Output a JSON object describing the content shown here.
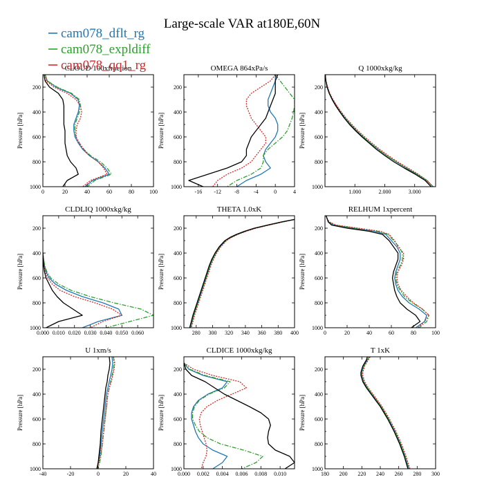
{
  "figure": {
    "title": "Large-scale VAR at180E,60N",
    "legend": [
      {
        "name": "cam078_dflt_rg",
        "color": "#1f77b4",
        "dash": "solid"
      },
      {
        "name": "cam078_expldiff",
        "color": "#2ca02c",
        "dash": "dashdot"
      },
      {
        "name": "cam078_qq1_rg",
        "color": "#d62728",
        "dash": "dotted"
      },
      {
        "name": "",
        "color": "#000000",
        "dash": "solid"
      }
    ],
    "ylabel": "Pressure [hPa]"
  },
  "chart_data": [
    {
      "type": "line",
      "title": "CLOUD  100xfraction",
      "ylabel": "Pressure [hPa]",
      "xlim": [
        0,
        100
      ],
      "ylim": [
        1000,
        100
      ],
      "xticks": [
        "0",
        "20",
        "40",
        "60",
        "80",
        "100"
      ],
      "yticks": [
        "200",
        "400",
        "600",
        "800",
        "1000"
      ],
      "y": [
        100,
        150,
        200,
        250,
        300,
        350,
        400,
        450,
        500,
        550,
        600,
        650,
        700,
        750,
        800,
        850,
        900,
        950,
        1000
      ],
      "series": [
        {
          "x": [
            2,
            4,
            12,
            25,
            32,
            33,
            32,
            30,
            28,
            28,
            29,
            32,
            36,
            42,
            50,
            56,
            60,
            45,
            38
          ]
        },
        {
          "x": [
            2,
            4,
            13,
            26,
            33,
            34,
            33,
            31,
            29,
            29,
            30,
            33,
            37,
            43,
            52,
            58,
            62,
            47,
            40
          ]
        },
        {
          "x": [
            2,
            3,
            10,
            22,
            30,
            34,
            35,
            34,
            31,
            30,
            30,
            33,
            37,
            42,
            50,
            55,
            58,
            43,
            36
          ]
        },
        {
          "x": [
            1,
            2,
            6,
            14,
            18,
            19,
            19,
            19,
            19,
            20,
            20,
            20,
            21,
            22,
            25,
            30,
            32,
            22,
            18
          ]
        }
      ]
    },
    {
      "type": "line",
      "title": "OMEGA  864xPa/s",
      "ylabel": "Pressure [hPa]",
      "xlim": [
        -19,
        4
      ],
      "ylim": [
        1000,
        100
      ],
      "xticks": [
        "-16",
        "-12",
        "-8",
        "-4",
        "0",
        "4"
      ],
      "yticks": [
        "200",
        "400",
        "600",
        "800",
        "1000"
      ],
      "y": [
        100,
        150,
        200,
        250,
        300,
        350,
        400,
        450,
        500,
        550,
        600,
        650,
        700,
        750,
        800,
        850,
        900,
        950,
        1000
      ],
      "series": [
        {
          "x": [
            0,
            0,
            -0.5,
            -1,
            -1.5,
            -1.5,
            -1,
            0,
            0.5,
            0.5,
            0,
            -1,
            -2,
            -2.5,
            -2,
            -1,
            -3,
            -6,
            -8
          ]
        },
        {
          "x": [
            0,
            1,
            2,
            3,
            4,
            4,
            3.8,
            3.5,
            3,
            2.5,
            1.5,
            0,
            -1.5,
            -2.5,
            -2.5,
            -3,
            -5,
            -8,
            -10
          ]
        },
        {
          "x": [
            0,
            -1,
            -3,
            -5,
            -6,
            -6,
            -5.5,
            -5,
            -4,
            -3,
            -2,
            -2,
            -3,
            -4,
            -5,
            -7,
            -10,
            -12,
            -13
          ]
        },
        {
          "x": [
            0.5,
            0,
            0,
            0,
            -0.5,
            -1,
            -1.5,
            -2,
            -3,
            -4,
            -5,
            -5.5,
            -6,
            -6,
            -7,
            -10,
            -14,
            -18,
            -15
          ]
        }
      ]
    },
    {
      "type": "line",
      "title": "Q  1000xkg/kg",
      "ylabel": "Pressure [hPa]",
      "xlim": [
        0,
        3.7
      ],
      "ylim": [
        1000,
        100
      ],
      "xticks": [
        "1.000",
        "2.000",
        "3.000"
      ],
      "yticks": [
        "200",
        "400",
        "600",
        "800",
        "1000"
      ],
      "y": [
        100,
        150,
        200,
        250,
        300,
        350,
        400,
        450,
        500,
        550,
        600,
        650,
        700,
        750,
        800,
        850,
        900,
        950,
        1000
      ],
      "series": [
        {
          "x": [
            0.01,
            0.03,
            0.08,
            0.15,
            0.25,
            0.38,
            0.52,
            0.68,
            0.86,
            1.06,
            1.28,
            1.52,
            1.78,
            2.06,
            2.38,
            2.72,
            3.08,
            3.4,
            3.62
          ]
        },
        {
          "x": [
            0.01,
            0.03,
            0.08,
            0.15,
            0.25,
            0.38,
            0.52,
            0.68,
            0.86,
            1.06,
            1.28,
            1.52,
            1.78,
            2.06,
            2.38,
            2.72,
            3.08,
            3.4,
            3.62
          ]
        },
        {
          "x": [
            0.01,
            0.03,
            0.09,
            0.16,
            0.27,
            0.4,
            0.55,
            0.71,
            0.9,
            1.1,
            1.33,
            1.57,
            1.83,
            2.12,
            2.43,
            2.78,
            3.12,
            3.42,
            3.6
          ]
        },
        {
          "x": [
            0.01,
            0.03,
            0.07,
            0.14,
            0.24,
            0.36,
            0.5,
            0.65,
            0.82,
            1.02,
            1.24,
            1.48,
            1.72,
            2.0,
            2.3,
            2.65,
            3.02,
            3.35,
            3.55
          ]
        }
      ]
    },
    {
      "type": "line",
      "title": "CLDLIQ  1000xkg/kg",
      "ylabel": "Pressure [hPa]",
      "xlim": [
        0,
        0.07
      ],
      "ylim": [
        1000,
        100
      ],
      "xticks": [
        "0.000",
        "0.010",
        "0.020",
        "0.030",
        "0.040",
        "0.050",
        "0.060"
      ],
      "yticks": [
        "200",
        "400",
        "600",
        "800",
        "1000"
      ],
      "y": [
        400,
        450,
        500,
        550,
        600,
        650,
        700,
        750,
        800,
        850,
        900,
        950,
        1000
      ],
      "series": [
        {
          "x": [
            0,
            0.0005,
            0.001,
            0.002,
            0.004,
            0.008,
            0.015,
            0.025,
            0.038,
            0.048,
            0.05,
            0.035,
            0.025
          ]
        },
        {
          "x": [
            0,
            0.0005,
            0.0012,
            0.0025,
            0.005,
            0.01,
            0.018,
            0.03,
            0.045,
            0.062,
            0.07,
            0.055,
            0.04
          ]
        },
        {
          "x": [
            0,
            0.0003,
            0.0008,
            0.0015,
            0.003,
            0.006,
            0.011,
            0.02,
            0.033,
            0.044,
            0.05,
            0.038,
            0.03
          ]
        },
        {
          "x": [
            0,
            0.0002,
            0.0005,
            0.001,
            0.002,
            0.004,
            0.006,
            0.009,
            0.013,
            0.019,
            0.025,
            0.01,
            0.002
          ]
        }
      ]
    },
    {
      "type": "line",
      "title": "THETA  1.0xK",
      "ylabel": "Pressure [hPa]",
      "xlim": [
        265,
        400
      ],
      "ylim": [
        1000,
        100
      ],
      "xticks": [
        "280",
        "300",
        "320",
        "340",
        "360",
        "380",
        "400"
      ],
      "yticks": [
        "200",
        "400",
        "600",
        "800",
        "1000"
      ],
      "y": [
        130,
        150,
        175,
        200,
        225,
        250,
        275,
        300,
        350,
        400,
        450,
        500,
        600,
        700,
        800,
        900,
        950,
        1000
      ],
      "series": [
        {
          "x": [
            400,
            385,
            368,
            352,
            340,
            330,
            322,
            316,
            309,
            304,
            300,
            297,
            292,
            287,
            282,
            277,
            275,
            273
          ]
        },
        {
          "x": [
            400,
            385,
            368,
            352,
            340,
            330,
            322,
            316,
            309,
            304,
            300,
            297,
            292,
            287,
            282,
            277,
            275,
            273
          ]
        },
        {
          "x": [
            400,
            386,
            369,
            353,
            341,
            331,
            323,
            317,
            310,
            305,
            301,
            298,
            293,
            288,
            283,
            278,
            276,
            274
          ]
        },
        {
          "x": [
            400,
            384,
            367,
            351,
            339,
            329,
            321,
            315,
            308,
            303,
            299,
            296,
            291,
            286,
            281,
            276,
            274,
            272
          ]
        }
      ]
    },
    {
      "type": "line",
      "title": "RELHUM  1xpercent",
      "ylabel": "Pressure [hPa]",
      "xlim": [
        0,
        100
      ],
      "ylim": [
        1000,
        100
      ],
      "xticks": [
        "0",
        "20",
        "40",
        "60",
        "80",
        "100"
      ],
      "yticks": [
        "200",
        "400",
        "600",
        "800",
        "1000"
      ],
      "y": [
        100,
        125,
        150,
        175,
        200,
        225,
        250,
        300,
        350,
        400,
        450,
        500,
        550,
        600,
        650,
        700,
        750,
        800,
        850,
        900,
        950,
        1000
      ],
      "series": [
        {
          "x": [
            1,
            2,
            3,
            8,
            25,
            45,
            55,
            60,
            65,
            68,
            68,
            66,
            64,
            63,
            64,
            66,
            70,
            76,
            85,
            92,
            90,
            82
          ]
        },
        {
          "x": [
            1,
            2,
            3,
            9,
            27,
            47,
            57,
            62,
            67,
            70,
            70,
            68,
            65,
            64,
            65,
            68,
            72,
            79,
            88,
            94,
            92,
            85
          ]
        },
        {
          "x": [
            1,
            2,
            4,
            10,
            30,
            50,
            58,
            63,
            66,
            71,
            71,
            69,
            66,
            65,
            66,
            69,
            74,
            80,
            88,
            94,
            90,
            84
          ]
        },
        {
          "x": [
            1,
            2,
            3,
            6,
            20,
            40,
            52,
            58,
            62,
            66,
            66,
            64,
            62,
            61,
            62,
            63,
            65,
            68,
            74,
            82,
            86,
            78
          ]
        }
      ]
    },
    {
      "type": "line",
      "title": "U  1xm/s",
      "ylabel": "Pressure [hPa]",
      "xlim": [
        -40,
        40
      ],
      "ylim": [
        1000,
        100
      ],
      "xticks": [
        "-40",
        "-20",
        "0",
        "20",
        "40"
      ],
      "yticks": [
        "200",
        "400",
        "600",
        "800",
        "1000"
      ],
      "y": [
        100,
        150,
        200,
        250,
        300,
        350,
        400,
        500,
        600,
        700,
        800,
        900,
        950,
        1000
      ],
      "series": [
        {
          "x": [
            10,
            10.5,
            10,
            9,
            8,
            7,
            6,
            5,
            4,
            3,
            2,
            1,
            0,
            -0.5
          ]
        },
        {
          "x": [
            11,
            11.5,
            11,
            10,
            9,
            8,
            7,
            6,
            5,
            4,
            3,
            2,
            1,
            0
          ]
        },
        {
          "x": [
            11,
            12,
            11.5,
            10.5,
            9.5,
            8,
            7,
            6,
            5,
            4,
            3,
            1.5,
            0.5,
            -1
          ]
        },
        {
          "x": [
            8,
            8.5,
            8,
            7,
            6.5,
            5.5,
            5,
            4,
            3,
            2,
            1.5,
            0.5,
            0,
            -1
          ]
        }
      ]
    },
    {
      "type": "line",
      "title": "CLDICE  1000xkg/kg",
      "ylabel": "Pressure [hPa]",
      "xlim": [
        0,
        0.0115
      ],
      "ylim": [
        1000,
        100
      ],
      "xticks": [
        "0.000",
        "0.002",
        "0.004",
        "0.006",
        "0.008",
        "0.010"
      ],
      "yticks": [
        "200",
        "400",
        "600",
        "800",
        "1000"
      ],
      "y": [
        150,
        200,
        250,
        300,
        350,
        400,
        450,
        500,
        550,
        600,
        650,
        700,
        750,
        800,
        850,
        900,
        950,
        1000
      ],
      "series": [
        {
          "x": [
            0,
            0.0005,
            0.002,
            0.0045,
            0.004,
            0.0025,
            0.0015,
            0.001,
            0.0008,
            0.0008,
            0.001,
            0.0012,
            0.0015,
            0.002,
            0.003,
            0.0045,
            0.004,
            0.003
          ]
        },
        {
          "x": [
            0,
            0.0006,
            0.0022,
            0.0048,
            0.0042,
            0.0026,
            0.0016,
            0.0011,
            0.0009,
            0.0009,
            0.0012,
            0.0016,
            0.0024,
            0.0038,
            0.0062,
            0.0082,
            0.0075,
            0.006
          ]
        },
        {
          "x": [
            0,
            0.001,
            0.003,
            0.0058,
            0.0065,
            0.005,
            0.0035,
            0.0024,
            0.0018,
            0.0016,
            0.0017,
            0.0019,
            0.0021,
            0.0023,
            0.0024,
            0.0023,
            0.002,
            0.0018
          ]
        },
        {
          "x": [
            0,
            0.0002,
            0.0008,
            0.0022,
            0.0032,
            0.0042,
            0.0055,
            0.0068,
            0.008,
            0.0088,
            0.009,
            0.0088,
            0.0087,
            0.0088,
            0.0095,
            0.011,
            0.0115,
            0.0105
          ]
        }
      ]
    },
    {
      "type": "line",
      "title": "T  1xK",
      "ylabel": "Pressure [hPa]",
      "xlim": [
        180,
        300
      ],
      "ylim": [
        1000,
        100
      ],
      "xticks": [
        "180",
        "200",
        "220",
        "240",
        "260",
        "280",
        "300"
      ],
      "yticks": [
        "200",
        "400",
        "600",
        "800",
        "1000"
      ],
      "y": [
        100,
        125,
        150,
        175,
        200,
        225,
        250,
        300,
        350,
        400,
        450,
        500,
        600,
        700,
        800,
        900,
        950,
        1000
      ],
      "series": [
        {
          "x": [
            228,
            226,
            224,
            222,
            221,
            220,
            220,
            222,
            226,
            231,
            236,
            241,
            249,
            256,
            262,
            267,
            269,
            271
          ]
        },
        {
          "x": [
            228,
            226,
            224,
            222,
            221,
            220,
            220,
            222,
            226,
            231,
            236,
            241,
            249,
            256,
            262,
            267,
            269,
            271
          ]
        },
        {
          "x": [
            229,
            227,
            225,
            223,
            222,
            221,
            221,
            223,
            227,
            232,
            237,
            242,
            250,
            257,
            263,
            268,
            270,
            272
          ]
        },
        {
          "x": [
            226,
            225,
            223,
            221,
            220,
            219,
            219,
            221,
            225,
            230,
            235,
            240,
            248,
            255,
            261,
            266,
            268,
            270
          ]
        }
      ]
    }
  ]
}
